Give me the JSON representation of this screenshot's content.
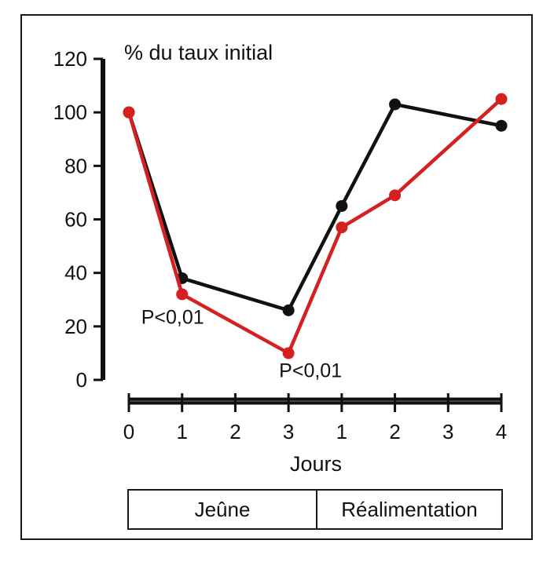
{
  "chart_data": {
    "type": "line",
    "ylabel": "% du taux initial",
    "xlabel": "Jours",
    "ylim": [
      0,
      120
    ],
    "yticks": [
      0,
      20,
      40,
      60,
      80,
      100,
      120
    ],
    "x": [
      0,
      1,
      2,
      3,
      4,
      5,
      6,
      7
    ],
    "xtick_labels": [
      "0",
      "1",
      "2",
      "3",
      "1",
      "2",
      "3",
      "4"
    ],
    "grid": false,
    "series": [
      {
        "color": "#111111",
        "points": [
          {
            "x": 0,
            "y": 100
          },
          {
            "x": 1,
            "y": 38
          },
          {
            "x": 3,
            "y": 26
          },
          {
            "x": 4,
            "y": 65
          },
          {
            "x": 5,
            "y": 103
          },
          {
            "x": 7,
            "y": 95
          }
        ]
      },
      {
        "color": "#d42020",
        "points": [
          {
            "x": 0,
            "y": 100
          },
          {
            "x": 1,
            "y": 32
          },
          {
            "x": 3,
            "y": 10
          },
          {
            "x": 4,
            "y": 57
          },
          {
            "x": 5,
            "y": 69
          },
          {
            "x": 7,
            "y": 105
          }
        ]
      }
    ],
    "annotations": [
      {
        "text": "P<0,01",
        "x": 1,
        "y": 21
      },
      {
        "text": "P<0,01",
        "x": 3,
        "y": 1
      }
    ],
    "phases": [
      {
        "label": "Jeûne",
        "from": 0,
        "to": 3.5
      },
      {
        "label": "Réalimentation",
        "from": 3.5,
        "to": 7
      }
    ]
  }
}
